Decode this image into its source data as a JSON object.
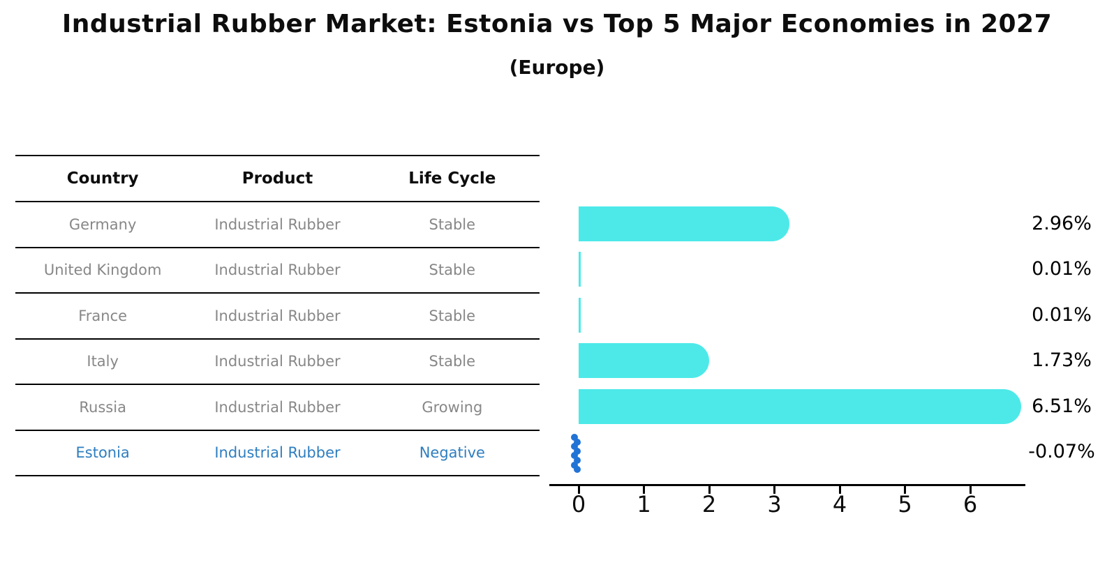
{
  "header": {
    "title": "Industrial Rubber Market: Estonia vs Top 5 Major Economies in 2027",
    "subtitle": "(Europe)"
  },
  "table": {
    "headers": [
      "Country",
      "Product",
      "Life Cycle"
    ],
    "rows": [
      {
        "country": "Germany",
        "product": "Industrial Rubber",
        "life_cycle": "Stable",
        "highlight": false
      },
      {
        "country": "United Kingdom",
        "product": "Industrial Rubber",
        "life_cycle": "Stable",
        "highlight": false
      },
      {
        "country": "France",
        "product": "Industrial Rubber",
        "life_cycle": "Stable",
        "highlight": false
      },
      {
        "country": "Italy",
        "product": "Industrial Rubber",
        "life_cycle": "Stable",
        "highlight": false
      },
      {
        "country": "Russia",
        "product": "Industrial Rubber",
        "life_cycle": "Growing",
        "highlight": false
      },
      {
        "country": "Estonia",
        "product": "Industrial Rubber",
        "life_cycle": "Negative",
        "highlight": true
      }
    ]
  },
  "chart_data": {
    "type": "bar",
    "orientation": "horizontal",
    "title": "Industrial Rubber Market: Estonia vs Top 5 Major Economies in 2027",
    "subtitle": "(Europe)",
    "categories": [
      "Germany",
      "United Kingdom",
      "France",
      "Italy",
      "Russia",
      "Estonia"
    ],
    "values": [
      2.96,
      0.01,
      0.01,
      1.73,
      6.51,
      -0.07
    ],
    "value_labels": [
      "2.96%",
      "0.01%",
      "0.01%",
      "1.73%",
      "6.51%",
      "-0.07%"
    ],
    "xticks": [
      0,
      1,
      2,
      3,
      4,
      5,
      6
    ],
    "xlim": [
      -0.45,
      6.85
    ],
    "xlabel": "",
    "ylabel": "",
    "grid": false,
    "legend": null,
    "bar_color": "#4DE9E9",
    "negative_marker_color": "#2273D6"
  },
  "colors": {
    "title_text": "#0d0d0d",
    "row_text": "#878787",
    "highlight_text": "#2E7EC0",
    "table_line": "#000000",
    "axis": "#000000"
  }
}
